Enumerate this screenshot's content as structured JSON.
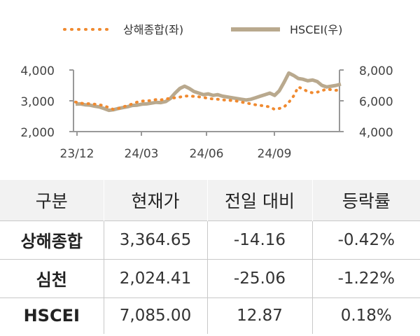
{
  "chart_data": {
    "type": "line",
    "x_ticks": [
      "23/12",
      "24/03",
      "24/06",
      "24/09"
    ],
    "y_left": {
      "ticks": [
        "4,000",
        "3,000",
        "2,000"
      ],
      "range": [
        2000,
        4000
      ]
    },
    "y_right": {
      "ticks": [
        "8,000",
        "6,000",
        "4,000"
      ],
      "range": [
        4000,
        8000
      ]
    },
    "grid": false,
    "legend_position": "top",
    "series": [
      {
        "name": "상해종합(좌)",
        "axis": "left",
        "style": "dotted",
        "color": "#f08a30",
        "values": [
          2960,
          2930,
          2900,
          2910,
          2890,
          2870,
          2840,
          2780,
          2720,
          2750,
          2800,
          2850,
          2900,
          2960,
          2990,
          3000,
          3010,
          3040,
          3030,
          3060,
          3080,
          3100,
          3120,
          3150,
          3160,
          3140,
          3130,
          3110,
          3080,
          3060,
          3050,
          3030,
          3020,
          3010,
          2990,
          2960,
          2930,
          2900,
          2870,
          2850,
          2830,
          2800,
          2720,
          2750,
          2800,
          2950,
          3150,
          3450,
          3380,
          3300,
          3260,
          3280,
          3330,
          3380,
          3360,
          3340,
          3365
        ]
      },
      {
        "name": "HSCEI(우)",
        "axis": "right",
        "style": "solid",
        "color": "#b9a98e",
        "values": [
          5780,
          5800,
          5740,
          5720,
          5650,
          5600,
          5500,
          5380,
          5420,
          5500,
          5560,
          5620,
          5700,
          5720,
          5780,
          5800,
          5850,
          5900,
          5880,
          5950,
          6150,
          6500,
          6800,
          6950,
          6800,
          6600,
          6500,
          6400,
          6450,
          6350,
          6400,
          6300,
          6250,
          6200,
          6150,
          6100,
          6050,
          6100,
          6200,
          6300,
          6400,
          6500,
          6350,
          6650,
          7200,
          7800,
          7650,
          7450,
          7400,
          7300,
          7350,
          7250,
          7000,
          6900,
          6950,
          7000,
          7085
        ]
      }
    ]
  },
  "table": {
    "headers": [
      "구분",
      "현재가",
      "전일 대비",
      "등락률"
    ],
    "rows": [
      {
        "name": "상해종합",
        "price": "3,364.65",
        "change": "-14.16",
        "rate": "-0.42%"
      },
      {
        "name": "심천",
        "price": "2,024.41",
        "change": "-25.06",
        "rate": "-1.22%"
      },
      {
        "name": "HSCEI",
        "price": "7,085.00",
        "change": "12.87",
        "rate": "0.18%"
      }
    ]
  }
}
